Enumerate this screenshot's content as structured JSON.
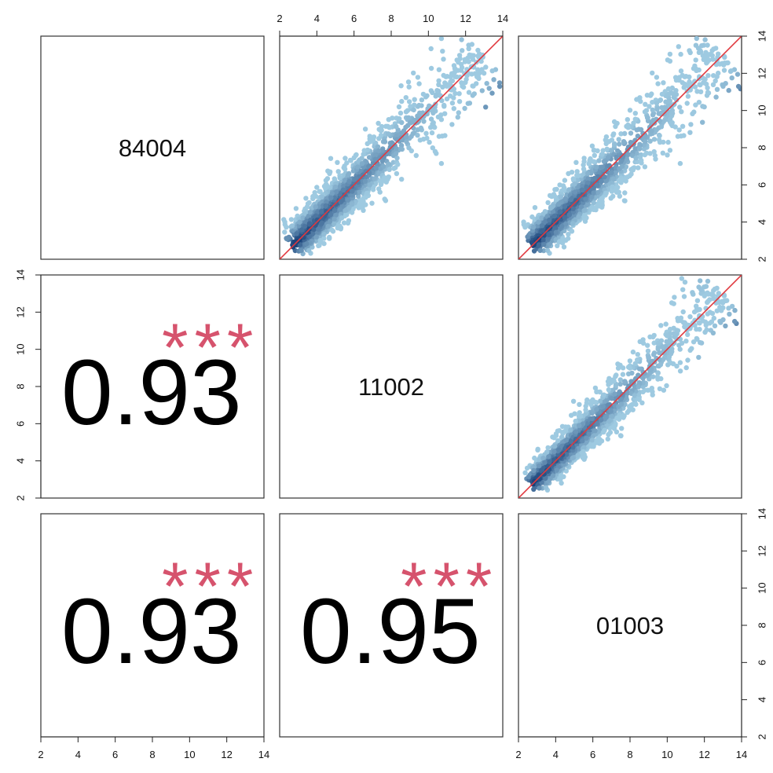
{
  "chart_data": {
    "type": "scatter",
    "matrix": "pairs",
    "variables": [
      "84004",
      "11002",
      "01003"
    ],
    "axis_range": [
      2,
      14
    ],
    "ticks": [
      2,
      4,
      6,
      8,
      10,
      12,
      14
    ],
    "point_color_light": "#9ecae1",
    "point_color_dense": "#08306b",
    "line_color": "#e0393e",
    "stars_color": "#d6536d",
    "correlations": [
      {
        "row": 1,
        "col": 0,
        "value": "0.93",
        "stars": "***"
      },
      {
        "row": 2,
        "col": 0,
        "value": "0.93",
        "stars": "***"
      },
      {
        "row": 2,
        "col": 1,
        "value": "0.95",
        "stars": "***"
      }
    ],
    "scatter_panels": [
      {
        "row": 0,
        "col": 1,
        "x": "11002",
        "y": "84004",
        "r": 0.93
      },
      {
        "row": 0,
        "col": 2,
        "x": "01003",
        "y": "84004",
        "r": 0.93
      },
      {
        "row": 1,
        "col": 2,
        "x": "01003",
        "y": "11002",
        "r": 0.95
      }
    ],
    "reference_line": "y = x",
    "grid": false,
    "legend": "none"
  }
}
